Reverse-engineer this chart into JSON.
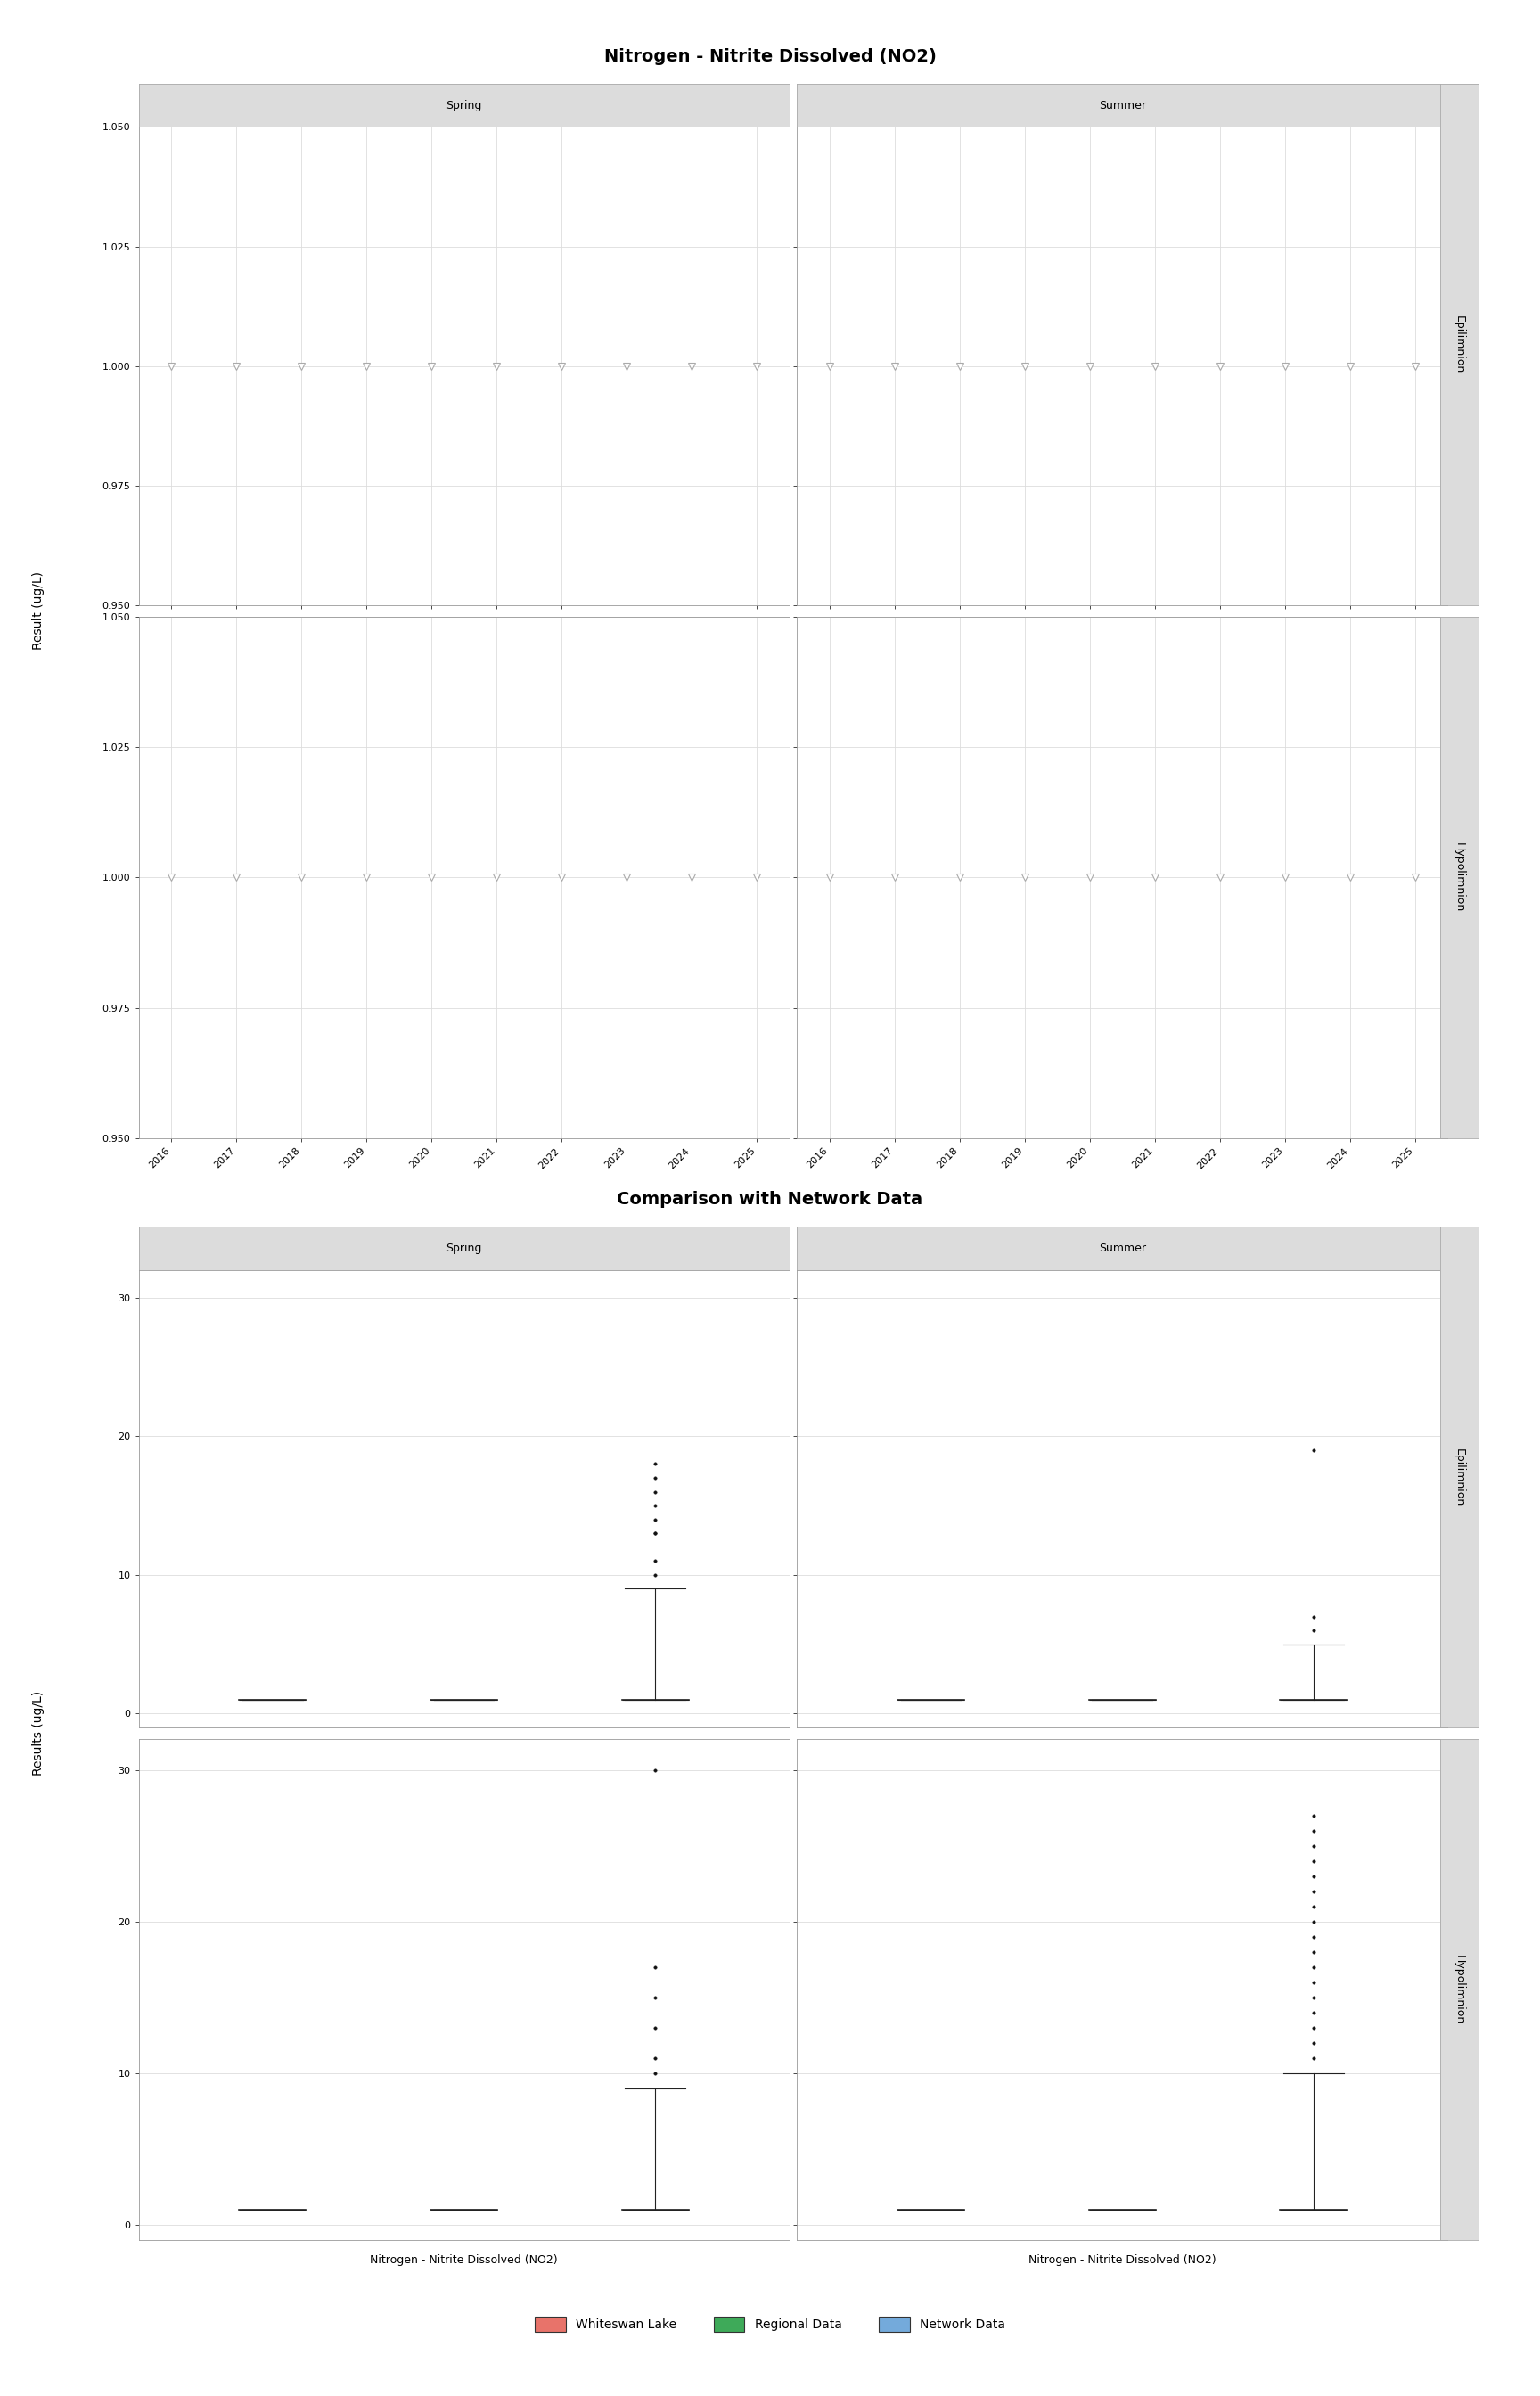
{
  "title1": "Nitrogen - Nitrite Dissolved (NO2)",
  "title2": "Comparison with Network Data",
  "panel_labels_season": [
    "Spring",
    "Summer"
  ],
  "panel_labels_layer": [
    "Epilimnion",
    "Hypolimnion"
  ],
  "ylabel1": "Result (ug/L)",
  "ylabel2": "Results (ug/L)",
  "xlabel_bottom": "Nitrogen - Nitrite Dissolved (NO2)",
  "ylim1": [
    0.95,
    1.05
  ],
  "yticks1": [
    0.95,
    0.975,
    1.0,
    1.025,
    1.05
  ],
  "ylim2": [
    -1,
    32
  ],
  "yticks2": [
    0,
    10,
    20,
    30
  ],
  "xlim_years": [
    2015.5,
    2025.5
  ],
  "xticks_years": [
    2016,
    2017,
    2018,
    2019,
    2020,
    2021,
    2022,
    2023,
    2024,
    2025
  ],
  "triangle_years": [
    2016,
    2017,
    2018,
    2019,
    2020,
    2021,
    2022,
    2023,
    2024,
    2025
  ],
  "triangle_y": 1.0,
  "triangle_color": "white",
  "triangle_edgecolor": "#aaaaaa",
  "bg_plot": "white",
  "grid_color": "#dddddd",
  "strip_bg": "#dcdcdc",
  "side_strip_bg": "#dcdcdc",
  "legend_items": [
    "Whiteswan Lake",
    "Regional Data",
    "Network Data"
  ],
  "legend_colors": [
    "#e8736a",
    "#3eaa59",
    "#74aadb"
  ],
  "network_spring_epi_fliers": [
    10,
    11,
    13,
    13,
    14,
    15,
    16,
    17,
    18
  ],
  "network_spring_epi_whishi": 9.0,
  "network_summer_epi_fliers": [
    6,
    7,
    19
  ],
  "network_summer_epi_whishi": 5.0,
  "network_spring_hypo_fliers": [
    10,
    11,
    13,
    15,
    17,
    30
  ],
  "network_spring_hypo_whishi": 9.0,
  "network_summer_hypo_fliers": [
    11,
    12,
    13,
    14,
    15,
    16,
    17,
    18,
    19,
    20,
    21,
    22,
    23,
    24,
    25,
    26,
    27
  ],
  "network_summer_hypo_whishi": 10.0
}
